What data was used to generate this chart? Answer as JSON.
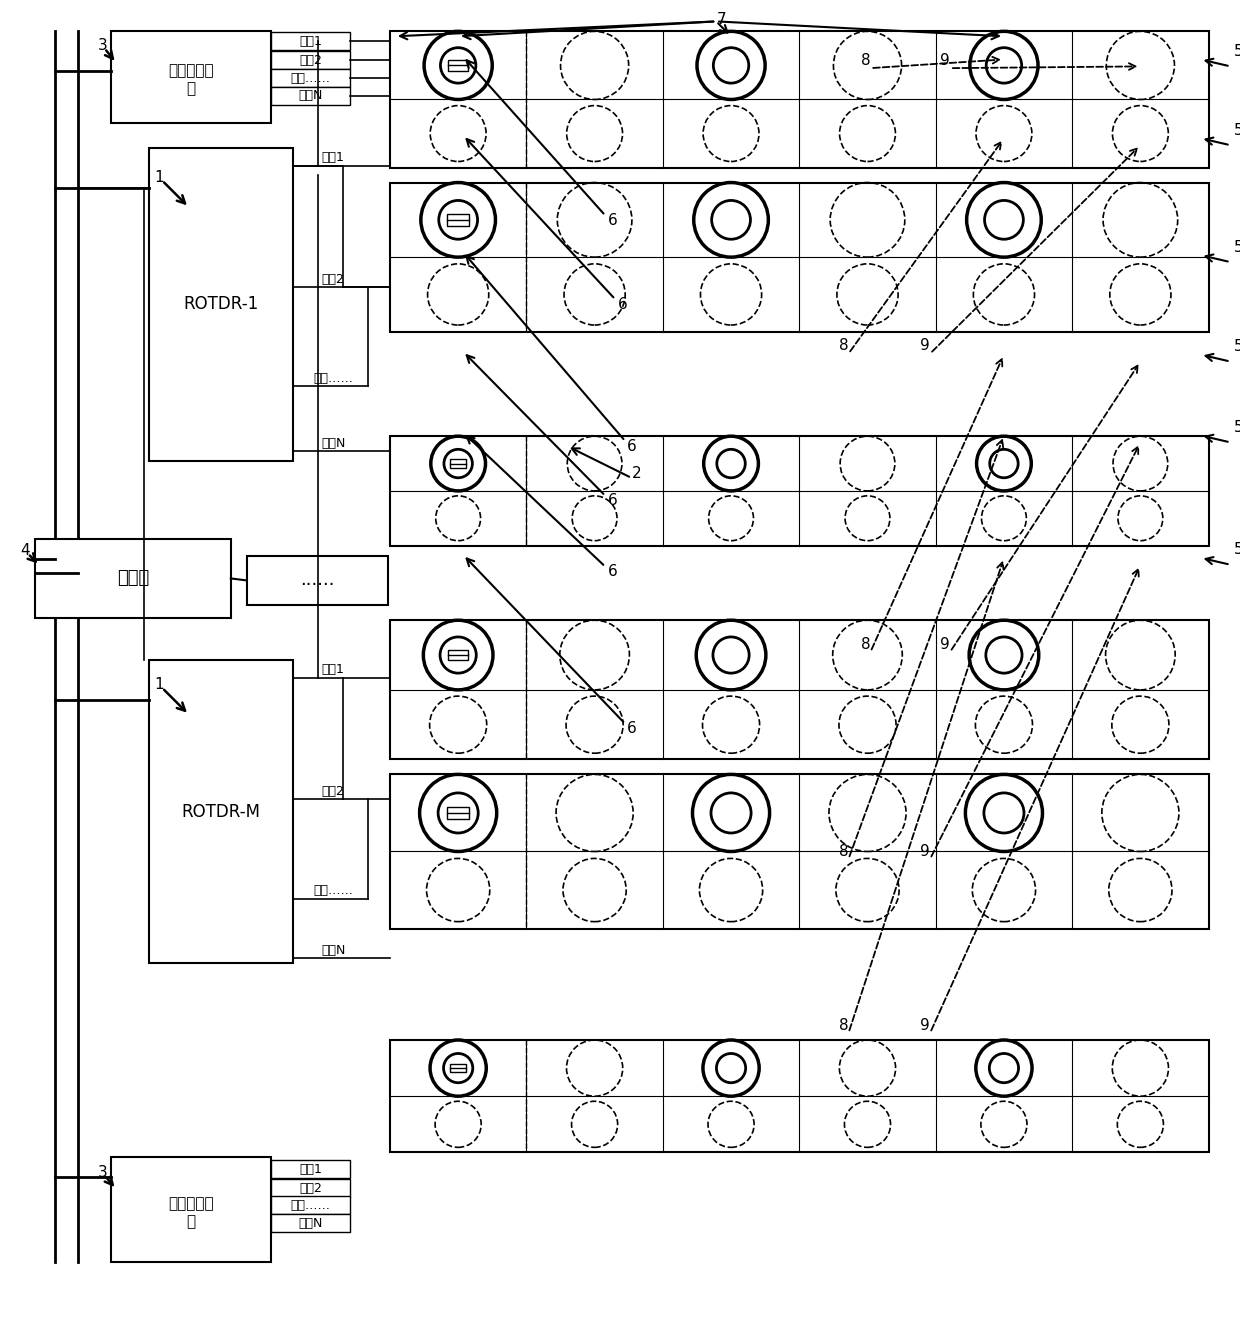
{
  "fig_width": 12.4,
  "fig_height": 13.24,
  "bg_color": "#ffffff",
  "labels": {
    "platinum_meter_line1": "铂电阻测温",
    "platinum_meter_line2": "乧",
    "rotdr1": "ROTDR-1",
    "rotdrm": "ROTDR-M",
    "server": "服务器",
    "ellipsis": "......",
    "ch1": "通道1",
    "ch2": "通道2",
    "chdot": "通道……",
    "chN": "通道N"
  }
}
